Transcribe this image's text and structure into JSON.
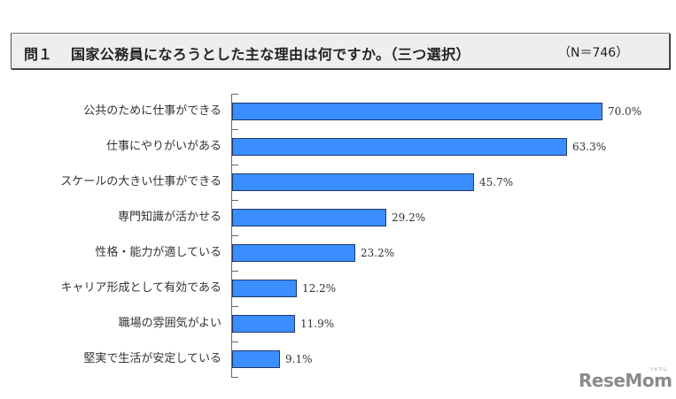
{
  "header": {
    "question_number": "問１",
    "question_text": "国家公務員になろうとした主な理由は何ですか。（三つ選択）",
    "sample_size": "（N＝746）"
  },
  "chart_data": {
    "type": "bar",
    "orientation": "horizontal",
    "title": "問１　国家公務員になろうとした主な理由は何ですか。（三つ選択）",
    "subtitle": "（N＝746）",
    "xlabel": "",
    "ylabel": "",
    "xlim": [
      0,
      70
    ],
    "grid": false,
    "legend": null,
    "unit": "%",
    "categories": [
      "公共のために仕事ができる",
      "仕事にやりがいがある",
      "スケールの大きい仕事ができる",
      "専門知識が活かせる",
      "性格・能力が適している",
      "キャリア形成として有効である",
      "職場の雰囲気がよい",
      "堅実で生活が安定している"
    ],
    "values": [
      70.0,
      63.3,
      45.7,
      29.2,
      23.2,
      12.2,
      11.9,
      9.1
    ],
    "value_labels": [
      "70.0%",
      "63.3%",
      "45.7%",
      "29.2%",
      "23.2%",
      "12.2%",
      "11.9%",
      "9.1%"
    ],
    "bar_color": "#3b8eff",
    "bar_border_color": "#1e3a6e"
  },
  "watermark": {
    "text": "ReseMom",
    "sub": "リセマム"
  }
}
